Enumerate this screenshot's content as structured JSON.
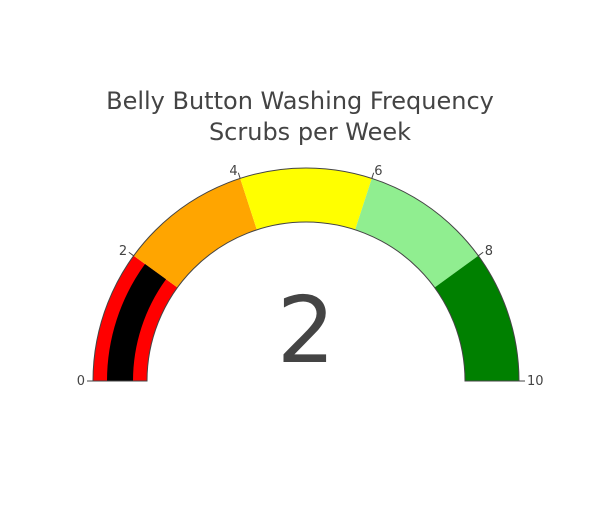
{
  "chart_data": {
    "type": "gauge",
    "title_lines": [
      "Belly Button Washing Frequency",
      "Scrubs per Week"
    ],
    "value": 2,
    "value_label": "2",
    "range": [
      0,
      10
    ],
    "ticks": [
      0,
      2,
      4,
      6,
      8,
      10
    ],
    "tick_labels": [
      "0",
      "2",
      "4",
      "6",
      "8",
      "10"
    ],
    "bar_color": "#000000",
    "steps": [
      {
        "range": [
          0,
          2
        ],
        "color": "#ff0000"
      },
      {
        "range": [
          2,
          4
        ],
        "color": "#ffa500"
      },
      {
        "range": [
          4,
          6
        ],
        "color": "#ffff00"
      },
      {
        "range": [
          6,
          8
        ],
        "color": "#90ee90"
      },
      {
        "range": [
          8,
          10
        ],
        "color": "#008000"
      }
    ],
    "border_color": "#444444"
  }
}
